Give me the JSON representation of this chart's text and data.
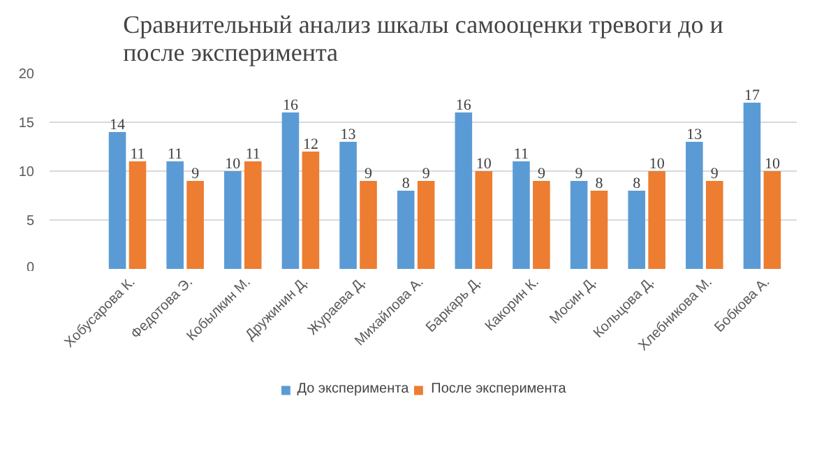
{
  "chart_data": {
    "type": "bar",
    "title": "Сравнительный анализ шкалы самооценки тревоги до и после эксперимента",
    "categories": [
      "Хобусарова К.",
      "Федотова Э.",
      "Кобылкин М.",
      "Дружинин Д.",
      "Жураева Д.",
      "Михайлова А.",
      "Баркарь Д.",
      "Какорин К.",
      "Мосин Д.",
      "Кольцова Д.",
      "Хлебникова М.",
      "Бобкова А."
    ],
    "series": [
      {
        "name": "До эксперимента",
        "color": "#5b9bd5",
        "values": [
          14,
          11,
          10,
          16,
          13,
          8,
          16,
          11,
          9,
          8,
          13,
          17
        ]
      },
      {
        "name": "После эксперимента",
        "color": "#ed7d31",
        "values": [
          11,
          9,
          11,
          12,
          9,
          9,
          10,
          9,
          8,
          10,
          9,
          10
        ]
      }
    ],
    "ylim": [
      0,
      20
    ],
    "yticks": [
      0,
      5,
      10,
      15,
      20
    ],
    "grid": "y",
    "legend": "bottom",
    "data_labels": true
  }
}
